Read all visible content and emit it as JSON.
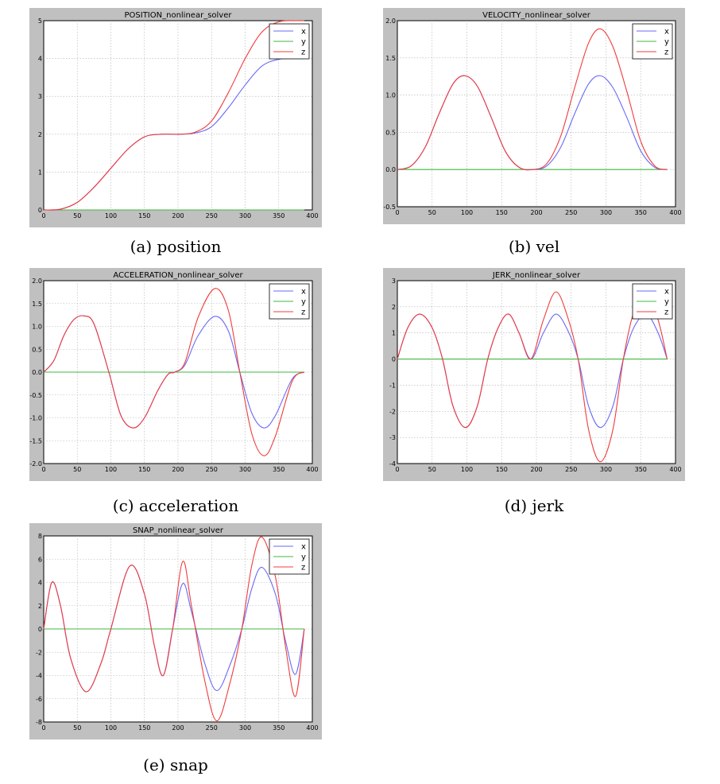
{
  "figure": {
    "panels": [
      {
        "id": "position",
        "caption": "(a) position"
      },
      {
        "id": "vel",
        "caption": "(b) vel"
      },
      {
        "id": "acceleration",
        "caption": "(c) acceleration"
      },
      {
        "id": "jerk",
        "caption": "(d) jerk"
      },
      {
        "id": "snap",
        "caption": "(e) snap"
      }
    ]
  },
  "colors": {
    "x": "#6a6af5",
    "y": "#3fb93f",
    "z": "#f03c3c",
    "frame_bg": "#c0c0c0",
    "grid": "#b0b0b0"
  },
  "chart_data": [
    {
      "type": "line",
      "title": "POSITION_nonlinear_solver",
      "xlim": [
        0,
        400
      ],
      "ylim": [
        0,
        5
      ],
      "xticks": [
        0,
        50,
        100,
        150,
        200,
        250,
        300,
        350,
        400
      ],
      "yticks": [
        0,
        1,
        2,
        3,
        4,
        5
      ],
      "legend": "top-right",
      "grid": true,
      "x": [
        0,
        25,
        50,
        75,
        100,
        125,
        150,
        175,
        200,
        225,
        250,
        275,
        300,
        325,
        350,
        375,
        388
      ],
      "series": [
        {
          "name": "x",
          "values": [
            0,
            0.02,
            0.2,
            0.6,
            1.1,
            1.6,
            1.93,
            2.0,
            2.0,
            2.03,
            2.2,
            2.7,
            3.3,
            3.8,
            3.98,
            4.0,
            4.0
          ]
        },
        {
          "name": "y",
          "values": [
            0,
            0,
            0,
            0,
            0,
            0,
            0,
            0,
            0,
            0,
            0,
            0,
            0,
            0,
            0,
            0,
            0
          ]
        },
        {
          "name": "z",
          "values": [
            0,
            0.02,
            0.2,
            0.6,
            1.1,
            1.6,
            1.93,
            2.0,
            2.0,
            2.05,
            2.35,
            3.1,
            4.0,
            4.7,
            4.97,
            5.0,
            5.0
          ]
        }
      ]
    },
    {
      "type": "line",
      "title": "VELOCITY_nonlinear_solver",
      "xlim": [
        0,
        400
      ],
      "ylim": [
        -0.5,
        2.0
      ],
      "xticks": [
        0,
        50,
        100,
        150,
        200,
        250,
        300,
        350,
        400
      ],
      "yticks": [
        -0.5,
        0.0,
        0.5,
        1.0,
        1.5,
        2.0
      ],
      "legend": "top-right",
      "grid": true,
      "x": [
        0,
        20,
        40,
        60,
        80,
        97,
        115,
        135,
        155,
        175,
        195,
        215,
        235,
        255,
        275,
        292,
        310,
        330,
        350,
        370,
        388
      ],
      "series": [
        {
          "name": "x",
          "values": [
            0,
            0.05,
            0.3,
            0.75,
            1.15,
            1.26,
            1.12,
            0.7,
            0.25,
            0.03,
            0,
            0.05,
            0.3,
            0.75,
            1.15,
            1.26,
            1.1,
            0.7,
            0.25,
            0.03,
            0
          ]
        },
        {
          "name": "y",
          "values": [
            0,
            0,
            0,
            0,
            0,
            0,
            0,
            0,
            0,
            0,
            0,
            0,
            0,
            0,
            0,
            0,
            0,
            0,
            0,
            0,
            0
          ]
        },
        {
          "name": "z",
          "values": [
            0,
            0.05,
            0.3,
            0.75,
            1.15,
            1.26,
            1.12,
            0.7,
            0.25,
            0.03,
            0,
            0.08,
            0.45,
            1.1,
            1.7,
            1.89,
            1.65,
            1.05,
            0.38,
            0.05,
            0
          ]
        }
      ]
    },
    {
      "type": "line",
      "title": "ACCELERATION_nonlinear_solver",
      "xlim": [
        0,
        400
      ],
      "ylim": [
        -2.0,
        2.0
      ],
      "xticks": [
        0,
        50,
        100,
        150,
        200,
        250,
        300,
        350,
        400
      ],
      "yticks": [
        -2.0,
        -1.5,
        -1.0,
        -0.5,
        0.0,
        0.5,
        1.0,
        1.5,
        2.0
      ],
      "legend": "top-right",
      "grid": true,
      "x": [
        0,
        15,
        30,
        45,
        60,
        75,
        97,
        115,
        133,
        150,
        170,
        185,
        195,
        210,
        230,
        255,
        275,
        292,
        310,
        328,
        345,
        370,
        388
      ],
      "series": [
        {
          "name": "x",
          "values": [
            0,
            0.25,
            0.8,
            1.15,
            1.23,
            1.05,
            0,
            -0.95,
            -1.22,
            -1.0,
            -0.4,
            -0.05,
            0,
            0.15,
            0.8,
            1.22,
            0.9,
            0,
            -0.9,
            -1.22,
            -0.95,
            -0.15,
            0
          ]
        },
        {
          "name": "y",
          "values": [
            0,
            0,
            0,
            0,
            0,
            0,
            0,
            0,
            0,
            0,
            0,
            0,
            0,
            0,
            0,
            0,
            0,
            0,
            0,
            0,
            0,
            0,
            0
          ]
        },
        {
          "name": "z",
          "values": [
            0,
            0.25,
            0.8,
            1.15,
            1.23,
            1.05,
            0,
            -0.95,
            -1.22,
            -1.0,
            -0.4,
            -0.05,
            0,
            0.2,
            1.2,
            1.83,
            1.35,
            0,
            -1.35,
            -1.83,
            -1.4,
            -0.2,
            0
          ]
        }
      ]
    },
    {
      "type": "line",
      "title": "JERK_nonlinear_solver",
      "xlim": [
        0,
        400
      ],
      "ylim": [
        -4,
        3
      ],
      "xticks": [
        0,
        50,
        100,
        150,
        200,
        250,
        300,
        350,
        400
      ],
      "yticks": [
        -4,
        -3,
        -2,
        -1,
        0,
        1,
        2,
        3
      ],
      "legend": "top-right",
      "grid": true,
      "x": [
        0,
        15,
        32,
        50,
        65,
        80,
        98,
        115,
        130,
        145,
        160,
        175,
        192,
        210,
        228,
        245,
        260,
        275,
        292,
        310,
        325,
        340,
        358,
        375,
        388
      ],
      "series": [
        {
          "name": "x",
          "values": [
            0,
            1.2,
            1.72,
            1.2,
            0,
            -1.8,
            -2.62,
            -1.8,
            0,
            1.2,
            1.72,
            1.0,
            0,
            1.0,
            1.72,
            1.1,
            0,
            -1.8,
            -2.62,
            -1.8,
            0,
            1.2,
            1.72,
            1.0,
            0
          ]
        },
        {
          "name": "y",
          "values": [
            0,
            0,
            0,
            0,
            0,
            0,
            0,
            0,
            0,
            0,
            0,
            0,
            0,
            0,
            0,
            0,
            0,
            0,
            0,
            0,
            0,
            0,
            0,
            0,
            0
          ]
        },
        {
          "name": "z",
          "values": [
            0,
            1.2,
            1.72,
            1.2,
            0,
            -1.8,
            -2.62,
            -1.8,
            0,
            1.2,
            1.72,
            1.0,
            0,
            1.5,
            2.57,
            1.6,
            0,
            -2.7,
            -3.93,
            -2.7,
            0,
            1.8,
            2.57,
            1.5,
            0
          ]
        }
      ]
    },
    {
      "type": "line",
      "title": "SNAP_nonlinear_solver",
      "xlim": [
        0,
        400
      ],
      "ylim": [
        -8,
        8
      ],
      "xticks": [
        0,
        50,
        100,
        150,
        200,
        250,
        300,
        350,
        400
      ],
      "yticks": [
        -8,
        -6,
        -4,
        -2,
        0,
        2,
        4,
        6,
        8
      ],
      "legend": "top-right",
      "grid": true,
      "x": [
        0,
        12,
        25,
        40,
        63,
        85,
        100,
        128,
        150,
        165,
        178,
        192,
        207,
        220,
        240,
        258,
        278,
        295,
        310,
        325,
        345,
        360,
        375,
        388
      ],
      "series": [
        {
          "name": "x",
          "values": [
            0,
            4.0,
            2.0,
            -2.5,
            -5.4,
            -3.0,
            0,
            5.4,
            3.0,
            -1.5,
            -4.0,
            0,
            3.9,
            1.5,
            -3.0,
            -5.3,
            -3.0,
            0,
            3.5,
            5.3,
            3.0,
            -1.0,
            -3.9,
            0
          ]
        },
        {
          "name": "y",
          "values": [
            0,
            0,
            0,
            0,
            0,
            0,
            0,
            0,
            0,
            0,
            0,
            0,
            0,
            0,
            0,
            0,
            0,
            0,
            0,
            0,
            0,
            0,
            0,
            0
          ]
        },
        {
          "name": "z",
          "values": [
            0,
            4.0,
            2.0,
            -2.5,
            -5.4,
            -3.0,
            0,
            5.4,
            3.0,
            -1.5,
            -4.0,
            0,
            5.8,
            2.0,
            -4.5,
            -7.9,
            -4.5,
            0,
            5.5,
            7.9,
            4.5,
            -1.5,
            -5.8,
            0
          ]
        }
      ]
    }
  ]
}
